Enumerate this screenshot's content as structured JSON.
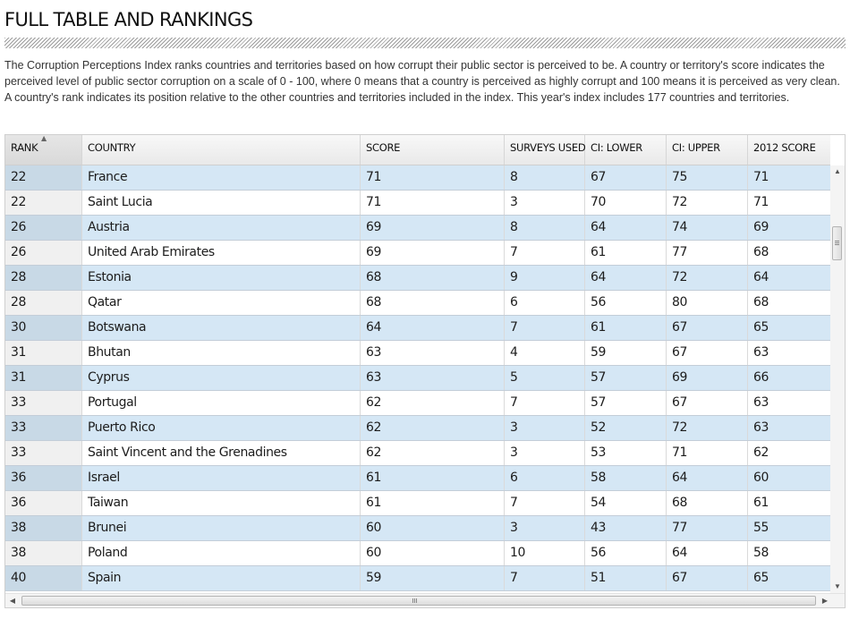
{
  "header": {
    "title": "FULL TABLE AND RANKINGS",
    "description": "The Corruption Perceptions Index ranks countries and territories based on how corrupt their public sector is perceived to be. A country or territory's score indicates the perceived level of public sector corruption on a scale of 0 - 100, where 0 means that a country is perceived as highly corrupt and 100 means it is perceived as very clean. A country's rank indicates its position relative to the other countries and territories included in the index. This year's index includes 177 countries and territories."
  },
  "table": {
    "columns": [
      "RANK",
      "COUNTRY",
      "SCORE",
      "SURVEYS USED",
      "CI: LOWER",
      "CI: UPPER",
      "2012 SCORE"
    ],
    "sort_indicator": "▲",
    "rows": [
      [
        "22",
        "France",
        "71",
        "8",
        "67",
        "75",
        "71"
      ],
      [
        "22",
        "Saint Lucia",
        "71",
        "3",
        "70",
        "72",
        "71"
      ],
      [
        "26",
        "Austria",
        "69",
        "8",
        "64",
        "74",
        "69"
      ],
      [
        "26",
        "United Arab Emirates",
        "69",
        "7",
        "61",
        "77",
        "68"
      ],
      [
        "28",
        "Estonia",
        "68",
        "9",
        "64",
        "72",
        "64"
      ],
      [
        "28",
        "Qatar",
        "68",
        "6",
        "56",
        "80",
        "68"
      ],
      [
        "30",
        "Botswana",
        "64",
        "7",
        "61",
        "67",
        "65"
      ],
      [
        "31",
        "Bhutan",
        "63",
        "4",
        "59",
        "67",
        "63"
      ],
      [
        "31",
        "Cyprus",
        "63",
        "5",
        "57",
        "69",
        "66"
      ],
      [
        "33",
        "Portugal",
        "62",
        "7",
        "57",
        "67",
        "63"
      ],
      [
        "33",
        "Puerto Rico",
        "62",
        "3",
        "52",
        "72",
        "63"
      ],
      [
        "33",
        "Saint Vincent and the Grenadines",
        "62",
        "3",
        "53",
        "71",
        "62"
      ],
      [
        "36",
        "Israel",
        "61",
        "6",
        "58",
        "64",
        "60"
      ],
      [
        "36",
        "Taiwan",
        "61",
        "7",
        "54",
        "68",
        "61"
      ],
      [
        "38",
        "Brunei",
        "60",
        "3",
        "43",
        "77",
        "55"
      ],
      [
        "38",
        "Poland",
        "60",
        "10",
        "56",
        "64",
        "58"
      ],
      [
        "40",
        "Spain",
        "59",
        "7",
        "51",
        "67",
        "65"
      ]
    ]
  },
  "scrollbars": {
    "up_glyph": "▲",
    "down_glyph": "▼",
    "left_glyph": "◀",
    "right_glyph": "▶"
  },
  "colors": {
    "row_alt": "#d5e7f5",
    "row_plain": "#ffffff"
  }
}
